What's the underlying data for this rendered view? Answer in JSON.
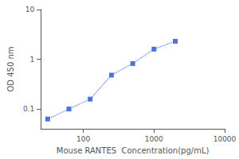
{
  "chart_data": {
    "type": "line",
    "xlabel": "Mouse RANTES  Concentration(pg/mL)",
    "ylabel": "OD 450 nm",
    "x": [
      31.25,
      62.5,
      125,
      250,
      500,
      1000,
      2000
    ],
    "values": [
      0.063,
      0.1,
      0.158,
      0.48,
      0.82,
      1.6,
      2.3
    ],
    "xlim": [
      25,
      10000
    ],
    "ylim": [
      0.04,
      10
    ],
    "xticks": [
      100,
      1000,
      10000
    ],
    "yticks": [
      0.1,
      1,
      10
    ],
    "log": true,
    "grid": false,
    "marker": "square",
    "line_style": "dotted"
  }
}
